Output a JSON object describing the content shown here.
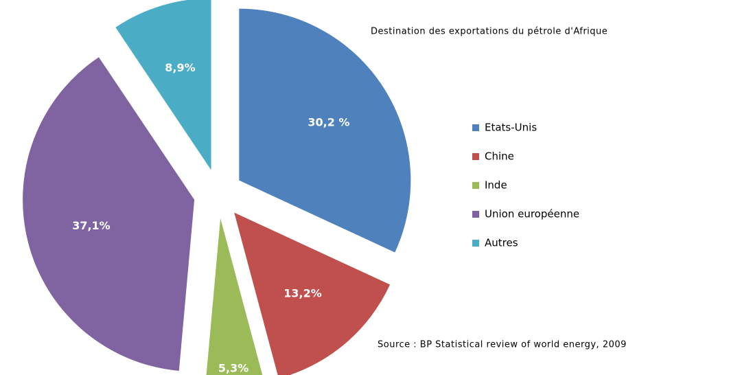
{
  "chart_data": {
    "type": "pie",
    "title": "Destination des exportations du pétrole d'Afrique",
    "annotations": [
      "Source : BP Statistical review of world energy, 2009"
    ],
    "categories": [
      "Etats-Unis",
      "Chine",
      "Inde",
      "Union européenne",
      "Autres"
    ],
    "values": [
      30.2,
      13.2,
      5.3,
      37.1,
      8.9
    ],
    "value_labels": [
      "30,2 %",
      "13,2%",
      "5,3%",
      "37,1%",
      "8,9%"
    ],
    "colors": [
      "#4f81bd",
      "#c0504d",
      "#9bbb59",
      "#8064a2",
      "#4bacc6"
    ],
    "legend": "right"
  }
}
